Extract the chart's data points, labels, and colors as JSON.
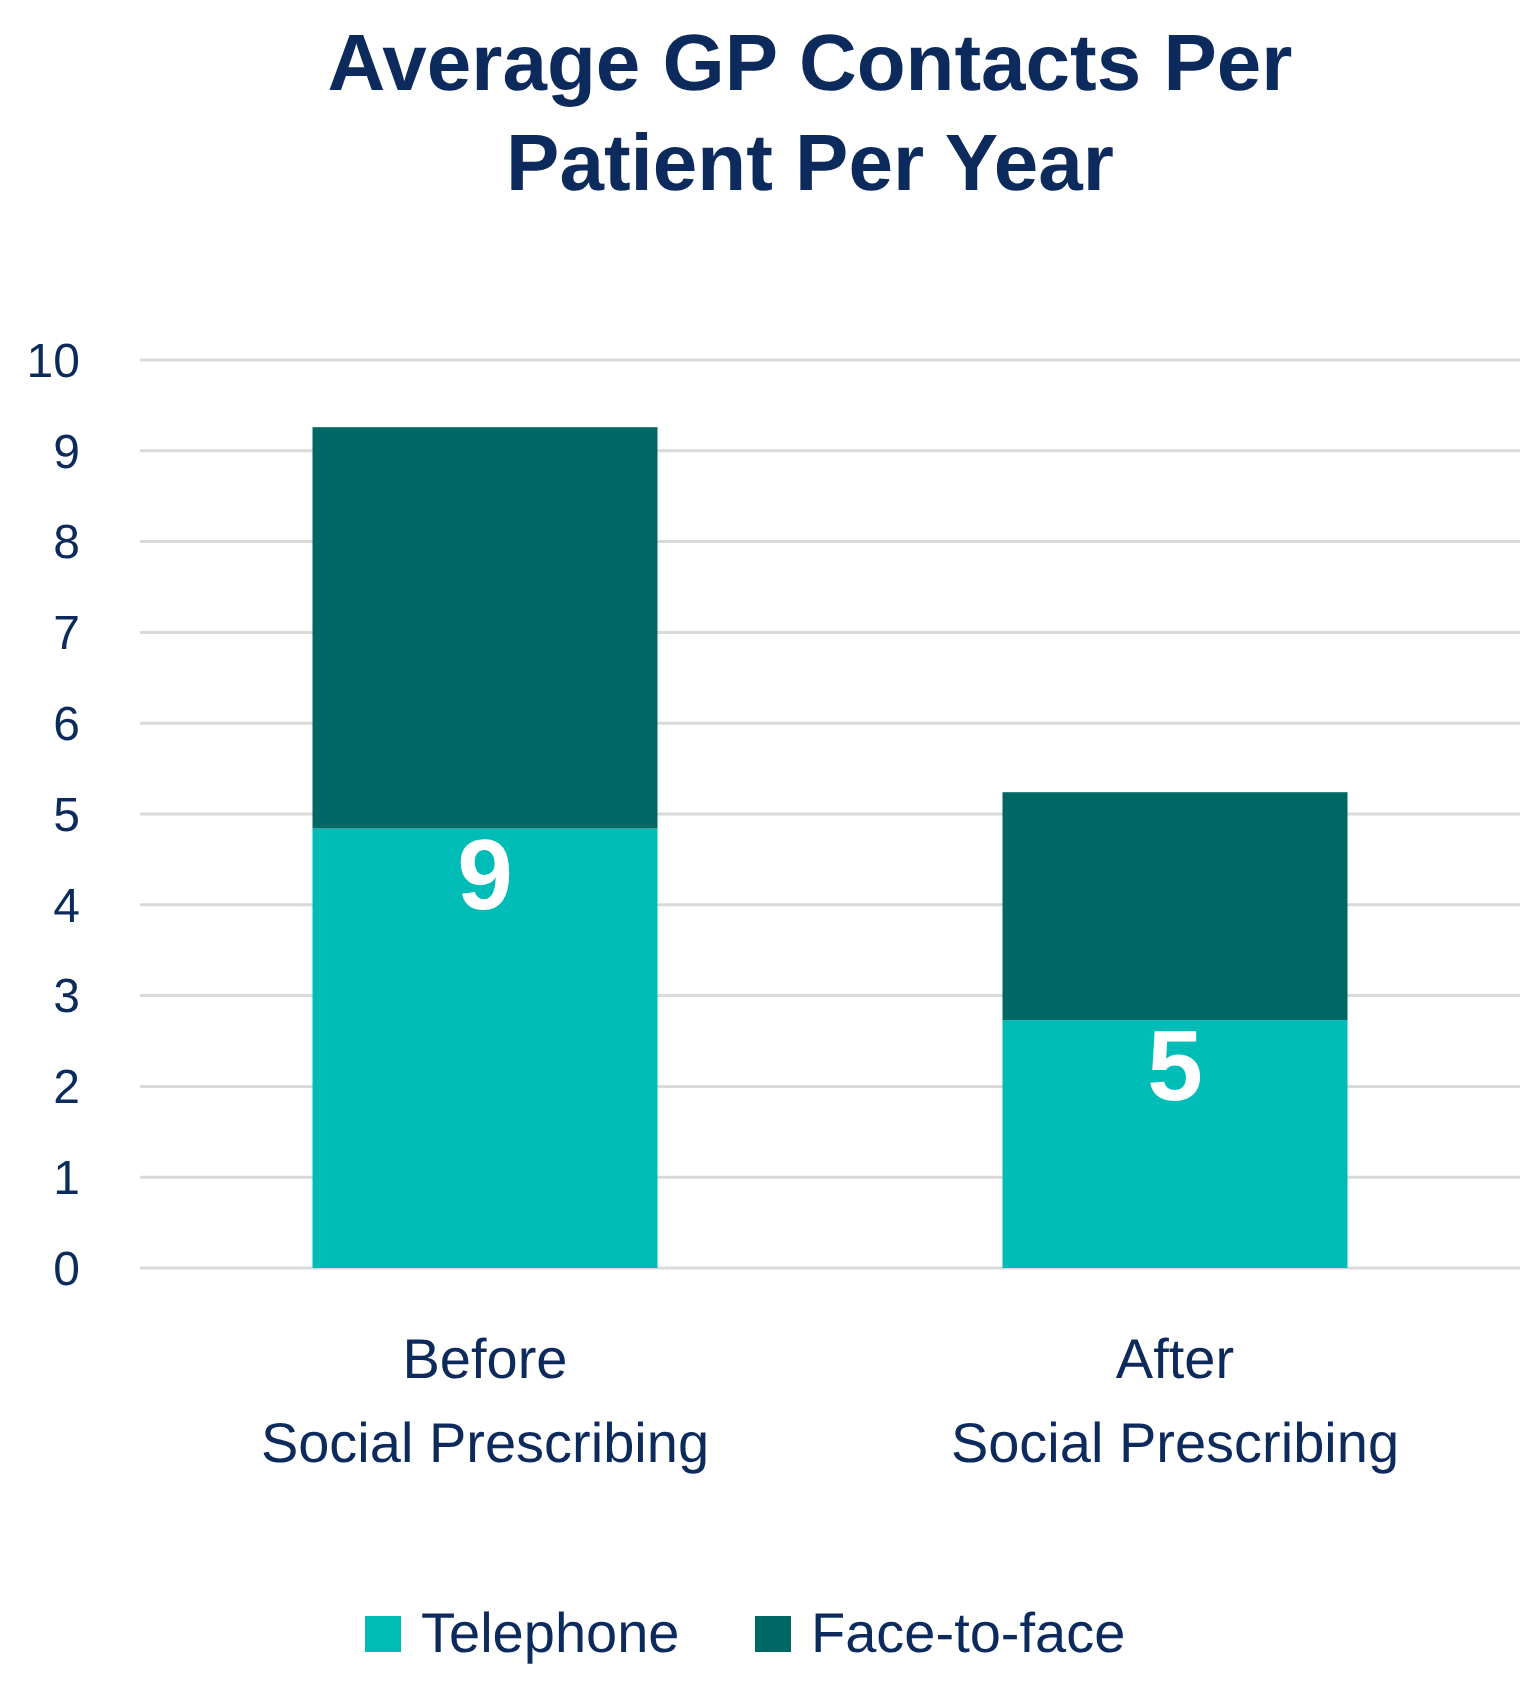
{
  "chart_data": {
    "type": "bar",
    "title": "Average GP Contacts Per Patient Per Year",
    "categories": [
      "Before\nSocial Prescribing",
      "After\nSocial Prescribing"
    ],
    "stacked": true,
    "series": [
      {
        "name": "Telephone",
        "color": "#00bcb6",
        "values": [
          4.84,
          2.73
        ]
      },
      {
        "name": "Face-to-face",
        "color": "#006864",
        "values": [
          4.42,
          2.51
        ]
      }
    ],
    "totals": [
      "9",
      "5"
    ],
    "ylim": [
      0,
      10
    ],
    "yticks": [
      0,
      1,
      2,
      3,
      4,
      5,
      6,
      7,
      8,
      9,
      10
    ],
    "grid": "y",
    "legend": "bottom"
  }
}
